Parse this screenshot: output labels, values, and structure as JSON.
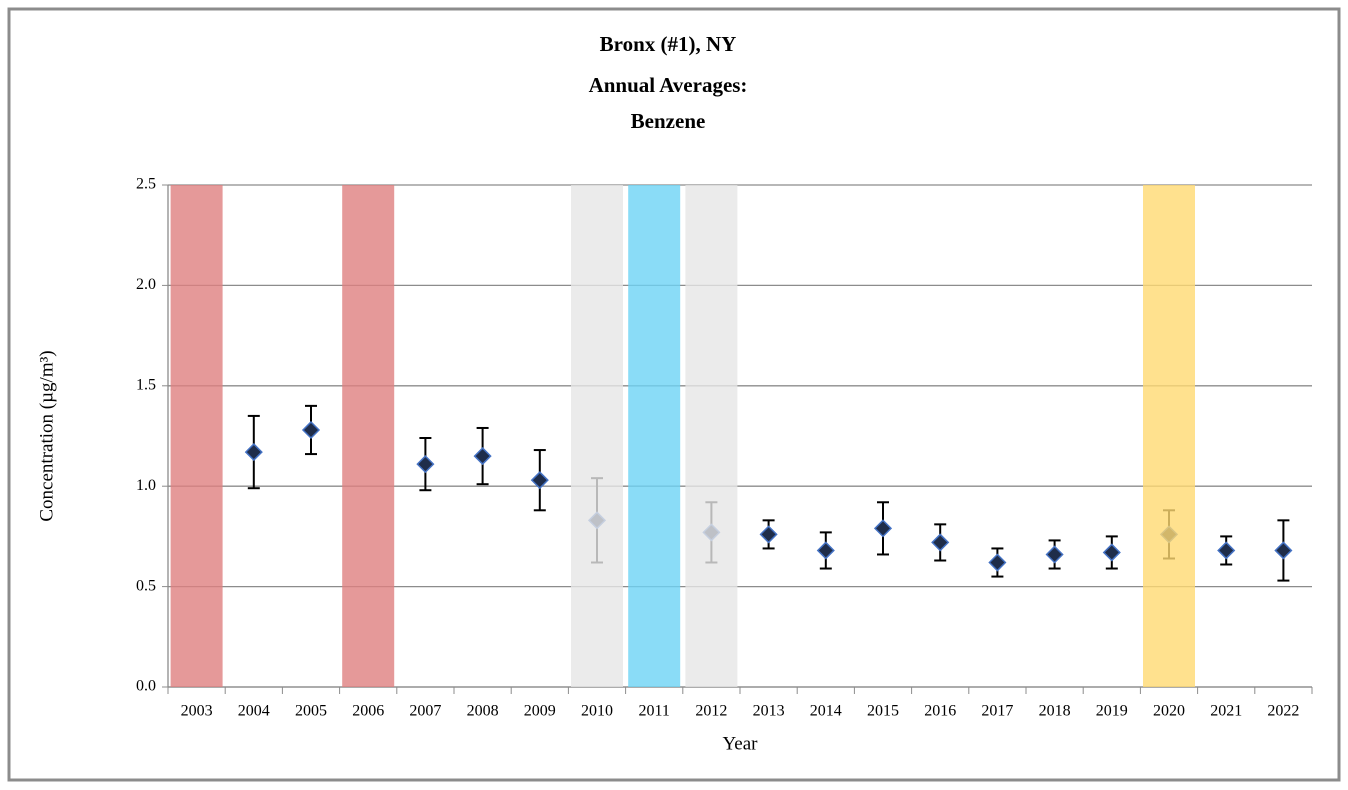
{
  "chart_data": {
    "type": "errorbar",
    "title": [
      "Bronx (#1), NY",
      "Annual Averages:",
      "Benzene"
    ],
    "xlabel": "Year",
    "ylabel": "Concentration (µg/m³)",
    "categories": [
      "2003",
      "2004",
      "2005",
      "2006",
      "2007",
      "2008",
      "2009",
      "2010",
      "2011",
      "2012",
      "2013",
      "2014",
      "2015",
      "2016",
      "2017",
      "2018",
      "2019",
      "2020",
      "2021",
      "2022"
    ],
    "values": [
      null,
      1.17,
      1.28,
      null,
      1.11,
      1.15,
      1.03,
      0.83,
      null,
      0.77,
      0.76,
      0.68,
      0.79,
      0.72,
      0.62,
      0.66,
      0.67,
      0.76,
      0.68,
      0.68
    ],
    "errors": [
      null,
      0.18,
      0.12,
      null,
      0.13,
      0.14,
      0.15,
      0.21,
      null,
      0.15,
      0.07,
      0.09,
      0.13,
      0.09,
      0.07,
      0.07,
      0.08,
      0.12,
      0.07,
      0.15
    ],
    "color": "#1f2d4a",
    "highlights": [
      {
        "category": "2003",
        "color": "#df7f7f"
      },
      {
        "category": "2006",
        "color": "#df7f7f"
      },
      {
        "category": "2010",
        "color": "#e6e6e6"
      },
      {
        "category": "2011",
        "color": "#6dd3f5"
      },
      {
        "category": "2012",
        "color": "#e6e6e6"
      },
      {
        "category": "2020",
        "color": "#ffd972"
      }
    ],
    "ylim": [
      0,
      2.5
    ],
    "yticks": [
      {
        "value": 0,
        "label": "0.0"
      },
      0.5,
      {
        "value": 1,
        "label": "1.0"
      },
      1.5,
      {
        "value": 2,
        "label": "2.0"
      },
      2.5
    ],
    "grid": true
  }
}
